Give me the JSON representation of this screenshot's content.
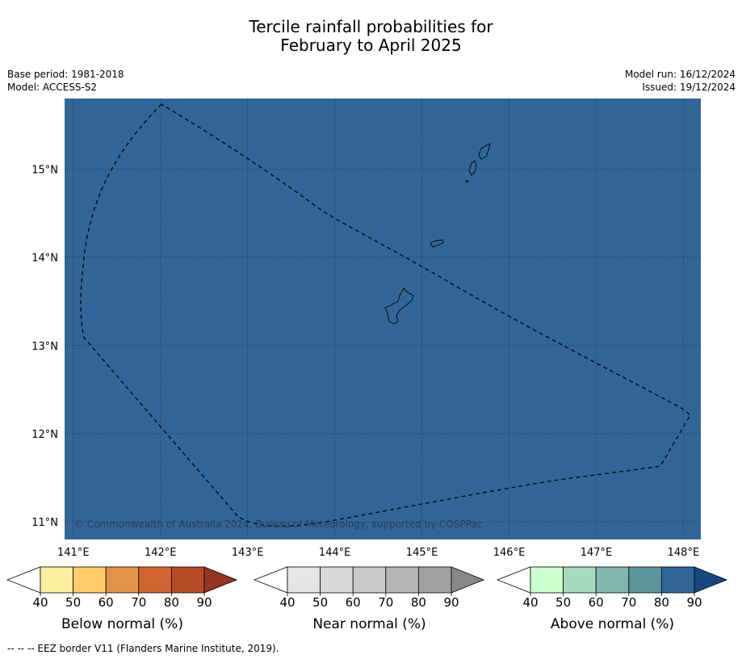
{
  "title": {
    "line1": "Tercile rainfall probabilities for",
    "line2": "February to April 2025"
  },
  "meta": {
    "base_period": "Base period: 1981-2018",
    "model": "Model: ACCESS-S2",
    "model_run": "Model run: 16/12/2024",
    "issued": "Issued: 19/12/2024"
  },
  "map": {
    "fill_color": "#326699",
    "lon_range": [
      140.9,
      148.2
    ],
    "lat_range": [
      10.8,
      15.8
    ],
    "lon_ticks": [
      141,
      142,
      143,
      144,
      145,
      146,
      147,
      148
    ],
    "lon_labels": [
      "141°E",
      "142°E",
      "143°E",
      "144°E",
      "145°E",
      "146°E",
      "147°E",
      "148°E"
    ],
    "lat_ticks": [
      15,
      14,
      13,
      12,
      11
    ],
    "lat_labels": [
      "15°N",
      "14°N",
      "13°N",
      "12°N",
      "11°N"
    ],
    "gridlines": true,
    "copyright": "© Commonwealth of Australia 2024, Bureau of Meteorology, supported by COSPPac"
  },
  "colorbars": [
    {
      "label": "Below normal (%)",
      "ticks": [
        "40",
        "50",
        "60",
        "70",
        "80",
        "90"
      ],
      "colors": [
        "#ffffff",
        "#fdeda1",
        "#fecc68",
        "#e09449",
        "#d16430",
        "#b54c28",
        "#953520"
      ]
    },
    {
      "label": "Near normal (%)",
      "ticks": [
        "40",
        "50",
        "60",
        "70",
        "80",
        "90"
      ],
      "colors": [
        "#ffffff",
        "#e5e5e5",
        "#d8d8d8",
        "#c9c9c9",
        "#b5b5b5",
        "#a0a0a0",
        "#888888"
      ]
    },
    {
      "label": "Above normal (%)",
      "ticks": [
        "40",
        "50",
        "60",
        "70",
        "80",
        "90"
      ],
      "colors": [
        "#ffffff",
        "#ccffcc",
        "#a6d9bd",
        "#82b6ae",
        "#5e949e",
        "#326699",
        "#17487f"
      ]
    }
  ],
  "footer": "--  --  -- EEZ border V11 (Flanders Marine Institute, 2019)."
}
